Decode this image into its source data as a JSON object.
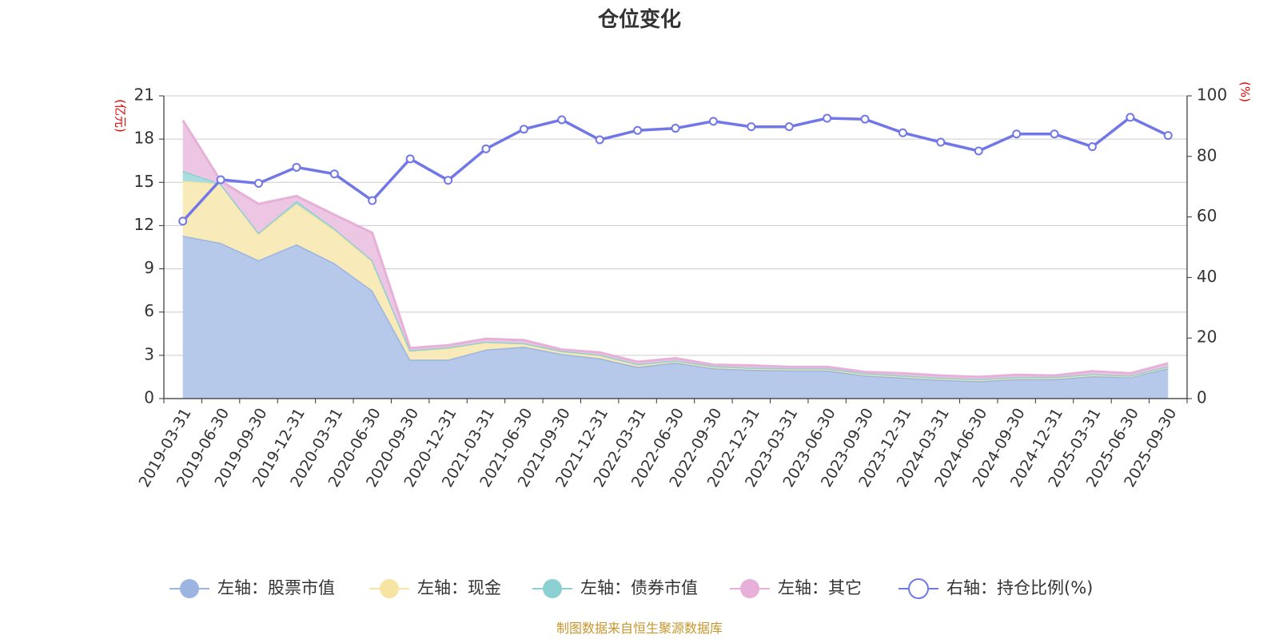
{
  "chart_data": {
    "type": "area",
    "title": "仓位变化",
    "left_unit": "(亿元)",
    "right_unit": "(%)",
    "left_ylim": [
      0,
      21
    ],
    "left_ticks": [
      0,
      3,
      6,
      9,
      12,
      15,
      18,
      21
    ],
    "right_ylim": [
      0,
      100
    ],
    "right_ticks": [
      0,
      20,
      40,
      60,
      80,
      100
    ],
    "grid": true,
    "legend_position": "bottom",
    "categories": [
      "2019-03-31",
      "2019-06-30",
      "2019-09-30",
      "2019-12-31",
      "2020-03-31",
      "2020-06-30",
      "2020-09-30",
      "2020-12-31",
      "2021-03-31",
      "2021-06-30",
      "2021-09-30",
      "2021-12-31",
      "2022-03-31",
      "2022-06-30",
      "2022-09-30",
      "2022-12-31",
      "2023-03-31",
      "2023-06-30",
      "2023-09-30",
      "2023-12-31",
      "2024-03-31",
      "2024-06-30",
      "2024-09-30",
      "2024-12-31",
      "2025-03-31",
      "2025-06-30",
      "2025-09-30"
    ],
    "series": [
      {
        "name": "左轴：股票市值",
        "axis": "left",
        "stack": true,
        "color": "#9bb5e0",
        "fill": "#b6c9ea",
        "values": [
          11.3,
          10.8,
          9.6,
          10.7,
          9.4,
          7.5,
          2.7,
          2.7,
          3.4,
          3.6,
          3.1,
          2.8,
          2.2,
          2.5,
          2.1,
          2.0,
          1.95,
          1.95,
          1.6,
          1.45,
          1.3,
          1.2,
          1.35,
          1.35,
          1.55,
          1.5,
          2.1
        ]
      },
      {
        "name": "左轴：现金",
        "axis": "left",
        "stack": true,
        "color": "#f7e3a2",
        "fill": "#f8eab9",
        "values": [
          3.8,
          4.1,
          1.85,
          2.8,
          2.3,
          2.0,
          0.6,
          0.8,
          0.5,
          0.2,
          0.15,
          0.2,
          0.15,
          0.1,
          0.1,
          0.1,
          0.1,
          0.1,
          0.1,
          0.1,
          0.1,
          0.1,
          0.1,
          0.1,
          0.1,
          0.05,
          0.1
        ]
      },
      {
        "name": "左轴：债券市值",
        "axis": "left",
        "stack": true,
        "color": "#8dd0d4",
        "fill": "#a8dcdf",
        "values": [
          0.7,
          0.0,
          0.05,
          0.2,
          0.1,
          0.1,
          0.05,
          0.05,
          0.05,
          0.05,
          0.05,
          0.05,
          0.05,
          0.05,
          0.05,
          0.05,
          0.05,
          0.05,
          0.05,
          0.05,
          0.05,
          0.05,
          0.05,
          0.05,
          0.05,
          0.05,
          0.05
        ]
      },
      {
        "name": "左轴：其它",
        "axis": "left",
        "stack": true,
        "color": "#e6b0d8",
        "fill": "#ecc6e2",
        "values": [
          3.5,
          0.2,
          2.0,
          0.35,
          0.95,
          1.9,
          0.15,
          0.15,
          0.2,
          0.2,
          0.1,
          0.15,
          0.15,
          0.15,
          0.1,
          0.15,
          0.1,
          0.1,
          0.1,
          0.15,
          0.15,
          0.15,
          0.15,
          0.1,
          0.2,
          0.15,
          0.2
        ]
      },
      {
        "name": "右轴：持仓比例(%)",
        "axis": "right",
        "type": "line",
        "color": "#7277e8",
        "values": [
          58.6,
          72.3,
          71.1,
          76.4,
          74.2,
          65.4,
          79.2,
          72.1,
          82.5,
          89.0,
          92.1,
          85.5,
          88.6,
          89.3,
          91.6,
          89.8,
          89.8,
          92.6,
          92.3,
          87.8,
          84.7,
          81.8,
          87.4,
          87.4,
          83.2,
          92.9,
          86.9
        ]
      }
    ],
    "source_note": "制图数据来自恒生聚源数据库"
  }
}
